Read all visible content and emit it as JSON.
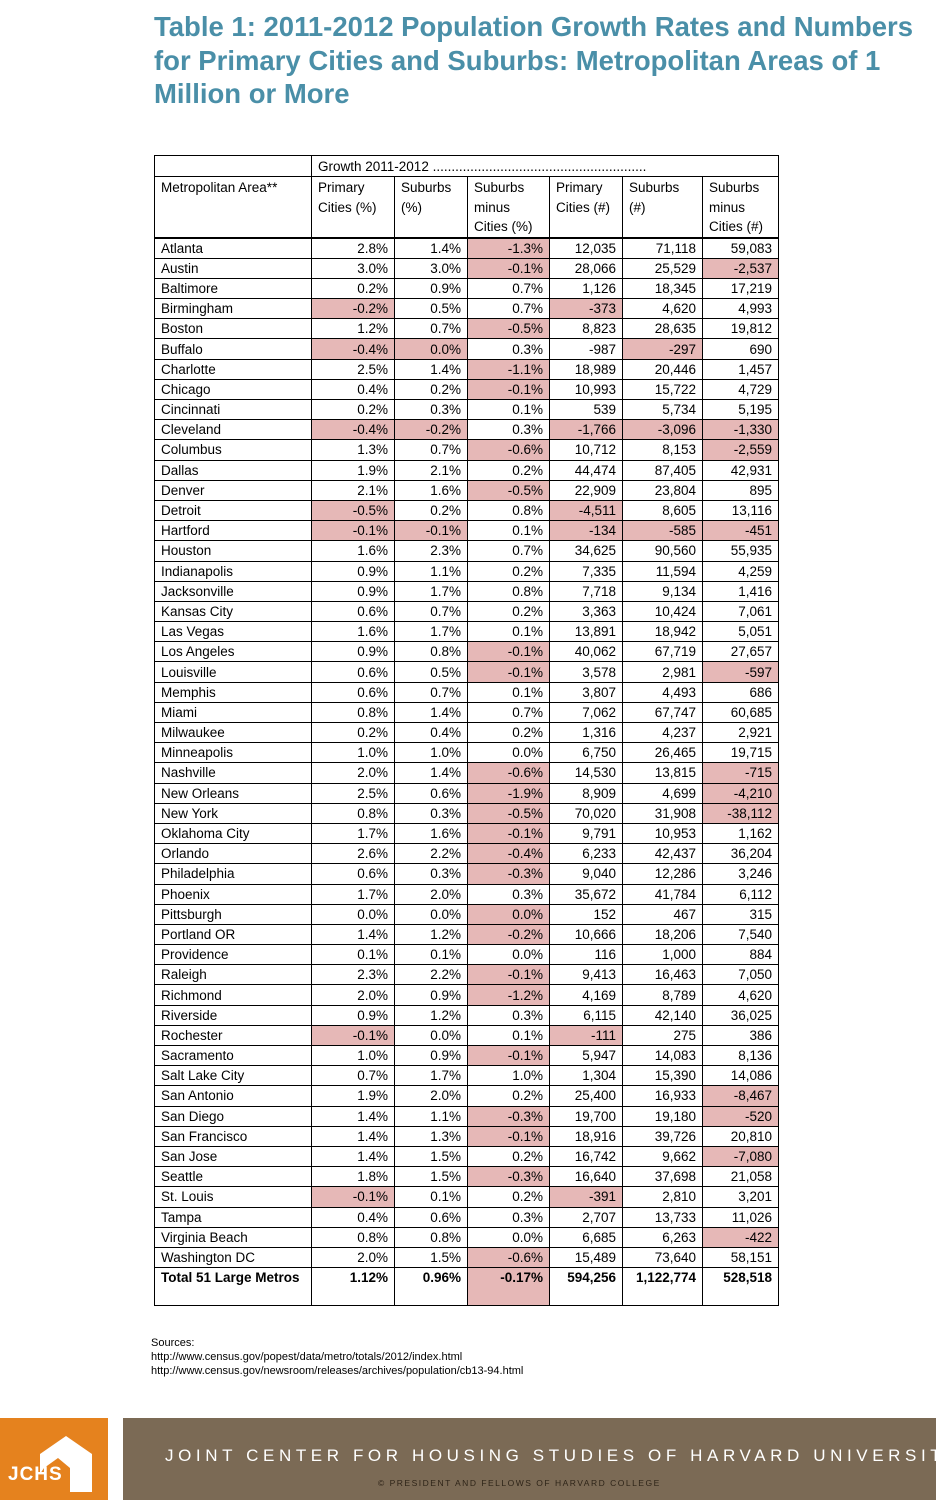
{
  "title": "Table 1: 2011-2012 Population Growth Rates and Numbers for Primary Cities and Suburbs: Metropolitan Areas of 1 Million or More",
  "table": {
    "group_header": "Growth 2011-2012 .........................................................",
    "columns": [
      "Metropolitan Area**",
      "Primary Cities (%)",
      "Suburbs (%)",
      "Suburbs minus Cities (%)",
      "Primary Cities (#)",
      "Suburbs (#)",
      "Suburbs minus Cities (#)"
    ],
    "highlight_color": "#e6b8b7",
    "rows": [
      {
        "area": "Atlanta",
        "values": [
          "2.8%",
          "1.4%",
          "-1.3%",
          "12,035",
          "71,118",
          "59,083"
        ],
        "highlighted": [
          2
        ]
      },
      {
        "area": "Austin",
        "values": [
          "3.0%",
          "3.0%",
          "-0.1%",
          "28,066",
          "25,529",
          "-2,537"
        ],
        "highlighted": [
          2,
          5
        ]
      },
      {
        "area": "Baltimore",
        "values": [
          "0.2%",
          "0.9%",
          "0.7%",
          "1,126",
          "18,345",
          "17,219"
        ],
        "highlighted": []
      },
      {
        "area": "Birmingham",
        "values": [
          "-0.2%",
          "0.5%",
          "0.7%",
          "-373",
          "4,620",
          "4,993"
        ],
        "highlighted": [
          0,
          3
        ]
      },
      {
        "area": "Boston",
        "values": [
          "1.2%",
          "0.7%",
          "-0.5%",
          "8,823",
          "28,635",
          "19,812"
        ],
        "highlighted": [
          2
        ]
      },
      {
        "area": "Buffalo",
        "values": [
          "-0.4%",
          "0.0%",
          "0.3%",
          "-987",
          "-297",
          "690"
        ],
        "highlighted": [
          0,
          1,
          4
        ]
      },
      {
        "area": "Charlotte",
        "values": [
          "2.5%",
          "1.4%",
          "-1.1%",
          "18,989",
          "20,446",
          "1,457"
        ],
        "highlighted": [
          2
        ]
      },
      {
        "area": "Chicago",
        "values": [
          "0.4%",
          "0.2%",
          "-0.1%",
          "10,993",
          "15,722",
          "4,729"
        ],
        "highlighted": [
          2
        ]
      },
      {
        "area": "Cincinnati",
        "values": [
          "0.2%",
          "0.3%",
          "0.1%",
          "539",
          "5,734",
          "5,195"
        ],
        "highlighted": []
      },
      {
        "area": "Cleveland",
        "values": [
          "-0.4%",
          "-0.2%",
          "0.3%",
          "-1,766",
          "-3,096",
          "-1,330"
        ],
        "highlighted": [
          0,
          1,
          3,
          4,
          5
        ]
      },
      {
        "area": "Columbus",
        "values": [
          "1.3%",
          "0.7%",
          "-0.6%",
          "10,712",
          "8,153",
          "-2,559"
        ],
        "highlighted": [
          2,
          5
        ]
      },
      {
        "area": "Dallas",
        "values": [
          "1.9%",
          "2.1%",
          "0.2%",
          "44,474",
          "87,405",
          "42,931"
        ],
        "highlighted": []
      },
      {
        "area": "Denver",
        "values": [
          "2.1%",
          "1.6%",
          "-0.5%",
          "22,909",
          "23,804",
          "895"
        ],
        "highlighted": [
          2
        ]
      },
      {
        "area": "Detroit",
        "values": [
          "-0.5%",
          "0.2%",
          "0.8%",
          "-4,511",
          "8,605",
          "13,116"
        ],
        "highlighted": [
          0,
          3
        ]
      },
      {
        "area": "Hartford",
        "values": [
          "-0.1%",
          "-0.1%",
          "0.1%",
          "-134",
          "-585",
          "-451"
        ],
        "highlighted": [
          0,
          1,
          3,
          4,
          5
        ]
      },
      {
        "area": "Houston",
        "values": [
          "1.6%",
          "2.3%",
          "0.7%",
          "34,625",
          "90,560",
          "55,935"
        ],
        "highlighted": []
      },
      {
        "area": "Indianapolis",
        "values": [
          "0.9%",
          "1.1%",
          "0.2%",
          "7,335",
          "11,594",
          "4,259"
        ],
        "highlighted": []
      },
      {
        "area": "Jacksonville",
        "values": [
          "0.9%",
          "1.7%",
          "0.8%",
          "7,718",
          "9,134",
          "1,416"
        ],
        "highlighted": []
      },
      {
        "area": "Kansas City",
        "values": [
          "0.6%",
          "0.7%",
          "0.2%",
          "3,363",
          "10,424",
          "7,061"
        ],
        "highlighted": []
      },
      {
        "area": "Las Vegas",
        "values": [
          "1.6%",
          "1.7%",
          "0.1%",
          "13,891",
          "18,942",
          "5,051"
        ],
        "highlighted": []
      },
      {
        "area": "Los Angeles",
        "values": [
          "0.9%",
          "0.8%",
          "-0.1%",
          "40,062",
          "67,719",
          "27,657"
        ],
        "highlighted": [
          2
        ]
      },
      {
        "area": "Louisville",
        "values": [
          "0.6%",
          "0.5%",
          "-0.1%",
          "3,578",
          "2,981",
          "-597"
        ],
        "highlighted": [
          2,
          5
        ]
      },
      {
        "area": "Memphis",
        "values": [
          "0.6%",
          "0.7%",
          "0.1%",
          "3,807",
          "4,493",
          "686"
        ],
        "highlighted": []
      },
      {
        "area": "Miami",
        "values": [
          "0.8%",
          "1.4%",
          "0.7%",
          "7,062",
          "67,747",
          "60,685"
        ],
        "highlighted": []
      },
      {
        "area": "Milwaukee",
        "values": [
          "0.2%",
          "0.4%",
          "0.2%",
          "1,316",
          "4,237",
          "2,921"
        ],
        "highlighted": []
      },
      {
        "area": "Minneapolis",
        "values": [
          "1.0%",
          "1.0%",
          "0.0%",
          "6,750",
          "26,465",
          "19,715"
        ],
        "highlighted": []
      },
      {
        "area": "Nashville",
        "values": [
          "2.0%",
          "1.4%",
          "-0.6%",
          "14,530",
          "13,815",
          "-715"
        ],
        "highlighted": [
          2,
          5
        ]
      },
      {
        "area": "New Orleans",
        "values": [
          "2.5%",
          "0.6%",
          "-1.9%",
          "8,909",
          "4,699",
          "-4,210"
        ],
        "highlighted": [
          2,
          5
        ]
      },
      {
        "area": "New York",
        "values": [
          "0.8%",
          "0.3%",
          "-0.5%",
          "70,020",
          "31,908",
          "-38,112"
        ],
        "highlighted": [
          2,
          5
        ]
      },
      {
        "area": "Oklahoma City",
        "values": [
          "1.7%",
          "1.6%",
          "-0.1%",
          "9,791",
          "10,953",
          "1,162"
        ],
        "highlighted": [
          2
        ]
      },
      {
        "area": "Orlando",
        "values": [
          "2.6%",
          "2.2%",
          "-0.4%",
          "6,233",
          "42,437",
          "36,204"
        ],
        "highlighted": [
          2
        ]
      },
      {
        "area": "Philadelphia",
        "values": [
          "0.6%",
          "0.3%",
          "-0.3%",
          "9,040",
          "12,286",
          "3,246"
        ],
        "highlighted": [
          2
        ]
      },
      {
        "area": "Phoenix",
        "values": [
          "1.7%",
          "2.0%",
          "0.3%",
          "35,672",
          "41,784",
          "6,112"
        ],
        "highlighted": []
      },
      {
        "area": "Pittsburgh",
        "values": [
          "0.0%",
          "0.0%",
          "0.0%",
          "152",
          "467",
          "315"
        ],
        "highlighted": [
          2
        ]
      },
      {
        "area": "Portland OR",
        "values": [
          "1.4%",
          "1.2%",
          "-0.2%",
          "10,666",
          "18,206",
          "7,540"
        ],
        "highlighted": [
          2
        ]
      },
      {
        "area": "Providence",
        "values": [
          "0.1%",
          "0.1%",
          "0.0%",
          "116",
          "1,000",
          "884"
        ],
        "highlighted": []
      },
      {
        "area": "Raleigh",
        "values": [
          "2.3%",
          "2.2%",
          "-0.1%",
          "9,413",
          "16,463",
          "7,050"
        ],
        "highlighted": [
          2
        ]
      },
      {
        "area": "Richmond",
        "values": [
          "2.0%",
          "0.9%",
          "-1.2%",
          "4,169",
          "8,789",
          "4,620"
        ],
        "highlighted": [
          2
        ]
      },
      {
        "area": "Riverside",
        "values": [
          "0.9%",
          "1.2%",
          "0.3%",
          "6,115",
          "42,140",
          "36,025"
        ],
        "highlighted": []
      },
      {
        "area": "Rochester",
        "values": [
          "-0.1%",
          "0.0%",
          "0.1%",
          "-111",
          "275",
          "386"
        ],
        "highlighted": [
          0,
          3
        ]
      },
      {
        "area": "Sacramento",
        "values": [
          "1.0%",
          "0.9%",
          "-0.1%",
          "5,947",
          "14,083",
          "8,136"
        ],
        "highlighted": [
          2
        ]
      },
      {
        "area": "Salt Lake City",
        "values": [
          "0.7%",
          "1.7%",
          "1.0%",
          "1,304",
          "15,390",
          "14,086"
        ],
        "highlighted": []
      },
      {
        "area": "San Antonio",
        "values": [
          "1.9%",
          "2.0%",
          "0.2%",
          "25,400",
          "16,933",
          "-8,467"
        ],
        "highlighted": [
          5
        ]
      },
      {
        "area": "San Diego",
        "values": [
          "1.4%",
          "1.1%",
          "-0.3%",
          "19,700",
          "19,180",
          "-520"
        ],
        "highlighted": [
          2,
          5
        ]
      },
      {
        "area": "San Francisco",
        "values": [
          "1.4%",
          "1.3%",
          "-0.1%",
          "18,916",
          "39,726",
          "20,810"
        ],
        "highlighted": [
          2
        ]
      },
      {
        "area": "San Jose",
        "values": [
          "1.4%",
          "1.5%",
          "0.2%",
          "16,742",
          "9,662",
          "-7,080"
        ],
        "highlighted": [
          5
        ]
      },
      {
        "area": "Seattle",
        "values": [
          "1.8%",
          "1.5%",
          "-0.3%",
          "16,640",
          "37,698",
          "21,058"
        ],
        "highlighted": [
          2
        ]
      },
      {
        "area": "St. Louis",
        "values": [
          "-0.1%",
          "0.1%",
          "0.2%",
          "-391",
          "2,810",
          "3,201"
        ],
        "highlighted": [
          0,
          3
        ]
      },
      {
        "area": "Tampa",
        "values": [
          "0.4%",
          "0.6%",
          "0.3%",
          "2,707",
          "13,733",
          "11,026"
        ],
        "highlighted": []
      },
      {
        "area": "Virginia Beach",
        "values": [
          "0.8%",
          "0.8%",
          "0.0%",
          "6,685",
          "6,263",
          "-422"
        ],
        "highlighted": [
          5
        ]
      },
      {
        "area": "Washington DC",
        "values": [
          "2.0%",
          "1.5%",
          "-0.6%",
          "15,489",
          "73,640",
          "58,151"
        ],
        "highlighted": [
          2
        ]
      }
    ],
    "total": {
      "area": "Total 51 Large Metros",
      "values": [
        "1.12%",
        "0.96%",
        "-0.17%",
        "594,256",
        "1,122,774",
        "528,518"
      ],
      "highlighted": [
        2
      ]
    }
  },
  "sources": {
    "label": "Sources:",
    "links": [
      "http://www.census.gov/popest/data/metro/totals/2012/index.html",
      "http://www.census.gov/newsroom/releases/archives/population/cb13-94.html"
    ]
  },
  "footer": {
    "logo": "JCHS",
    "logo_color": "#e5821e",
    "banner_color": "#7b6a55",
    "organization": "JOINT CENTER FOR HOUSING STUDIES OF HARVARD UNIVERSITY",
    "copyright": "© PRESIDENT AND FELLOWS OF HARVARD COLLEGE"
  }
}
